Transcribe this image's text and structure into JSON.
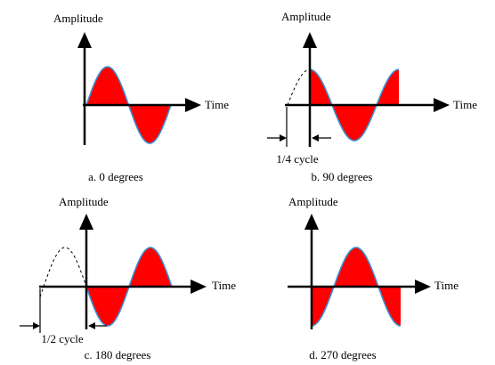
{
  "panels": [
    {
      "y_axis_label": "Amplitude",
      "x_axis_label": "Time",
      "caption": "a. 0 degrees"
    },
    {
      "y_axis_label": "Amplitude",
      "x_axis_label": "Time",
      "cycle_label": "1/4 cycle",
      "caption": "b. 90 degrees"
    },
    {
      "y_axis_label": "Amplitude",
      "x_axis_label": "Time",
      "cycle_label": "1/2 cycle",
      "caption": "c. 180 degrees"
    },
    {
      "y_axis_label": "Amplitude",
      "x_axis_label": "Time",
      "caption": "d. 270 degrees"
    }
  ]
}
